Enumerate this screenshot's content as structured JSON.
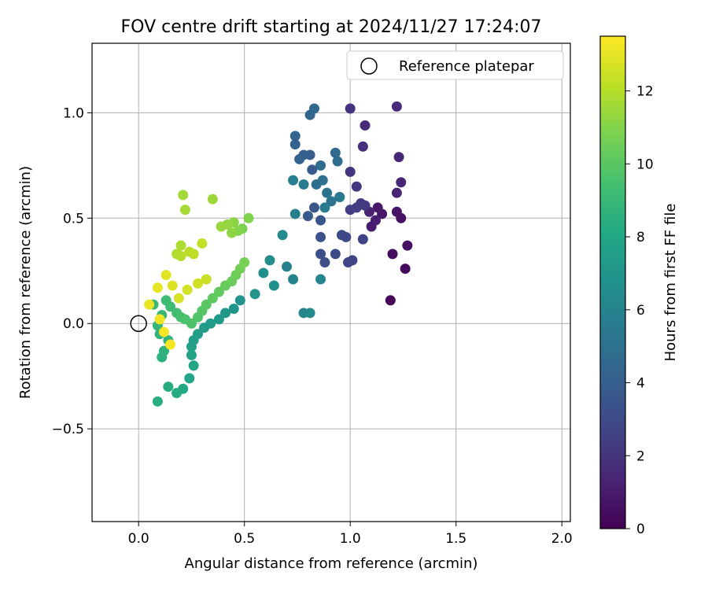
{
  "chart_data": {
    "type": "scatter",
    "title": "FOV centre drift starting at 2024/11/27 17:24:07",
    "xlabel": "Angular distance from reference (arcmin)",
    "ylabel": "Rotation from reference (arcmin)",
    "xlim": [
      -0.22,
      2.04
    ],
    "ylim": [
      -0.94,
      1.33
    ],
    "xticks": [
      0.0,
      0.5,
      1.0,
      1.5,
      2.0
    ],
    "xtick_labels": [
      "0.0",
      "0.5",
      "1.0",
      "1.5",
      "2.0"
    ],
    "yticks": [
      -0.5,
      0.0,
      0.5,
      1.0
    ],
    "ytick_labels": [
      "−0.5",
      "0.0",
      "0.5",
      "1.0"
    ],
    "grid": true,
    "legend": {
      "position": "top-right",
      "entries": [
        "Reference platepar"
      ]
    },
    "reference_point": {
      "x": 0.0,
      "y": 0.0,
      "label": "Reference platepar",
      "marker": "open circle"
    },
    "colorbar": {
      "label": "Hours from first FF file",
      "colormap": "viridis",
      "range": [
        0,
        13.5
      ],
      "ticks": [
        0,
        2,
        4,
        6,
        8,
        10,
        12
      ]
    },
    "series": [
      {
        "note_hidden": "",
        "points": [
          [
            1.19,
            0.11,
            0.2
          ],
          [
            1.26,
            0.26,
            0.3
          ],
          [
            1.2,
            0.33,
            0.4
          ],
          [
            1.27,
            0.37,
            0.5
          ],
          [
            1.24,
            0.5,
            0.6
          ],
          [
            1.22,
            0.53,
            0.7
          ],
          [
            1.15,
            0.52,
            0.8
          ],
          [
            1.13,
            0.55,
            0.9
          ],
          [
            1.1,
            0.46,
            1.0
          ],
          [
            1.12,
            0.49,
            1.1
          ],
          [
            1.09,
            0.53,
            1.2
          ],
          [
            1.22,
            0.62,
            1.3
          ],
          [
            1.24,
            0.67,
            1.4
          ],
          [
            1.23,
            0.79,
            1.5
          ],
          [
            1.22,
            1.03,
            1.6
          ],
          [
            1.07,
            0.94,
            1.7
          ],
          [
            1.06,
            0.84,
            1.8
          ],
          [
            1.0,
            1.02,
            1.9
          ],
          [
            1.0,
            0.72,
            2.0
          ],
          [
            1.03,
            0.65,
            2.1
          ],
          [
            1.05,
            0.57,
            2.2
          ],
          [
            1.07,
            0.56,
            2.3
          ],
          [
            1.03,
            0.55,
            2.4
          ],
          [
            1.0,
            0.54,
            2.5
          ],
          [
            1.06,
            0.4,
            2.6
          ],
          [
            1.01,
            0.3,
            2.7
          ],
          [
            0.99,
            0.29,
            2.8
          ],
          [
            0.98,
            0.41,
            2.9
          ],
          [
            0.96,
            0.42,
            3.0
          ],
          [
            0.93,
            0.33,
            3.1
          ],
          [
            0.88,
            0.29,
            3.2
          ],
          [
            0.86,
            0.33,
            3.3
          ],
          [
            0.86,
            0.41,
            3.4
          ],
          [
            0.86,
            0.49,
            3.5
          ],
          [
            0.83,
            0.55,
            3.6
          ],
          [
            0.8,
            0.51,
            3.7
          ],
          [
            0.82,
            0.73,
            3.8
          ],
          [
            0.81,
            0.8,
            3.9
          ],
          [
            0.78,
            0.8,
            4.0
          ],
          [
            0.76,
            0.78,
            4.1
          ],
          [
            0.74,
            0.85,
            4.2
          ],
          [
            0.74,
            0.89,
            4.3
          ],
          [
            0.81,
            0.99,
            4.4
          ],
          [
            0.83,
            1.02,
            4.5
          ],
          [
            0.93,
            0.81,
            4.6
          ],
          [
            0.94,
            0.77,
            4.7
          ],
          [
            0.86,
            0.75,
            4.8
          ],
          [
            0.84,
            0.66,
            4.9
          ],
          [
            0.87,
            0.68,
            5.0
          ],
          [
            0.89,
            0.62,
            5.1
          ],
          [
            0.91,
            0.58,
            5.2
          ],
          [
            0.95,
            0.6,
            5.3
          ],
          [
            0.95,
            0.6,
            5.4
          ],
          [
            0.88,
            0.55,
            5.5
          ],
          [
            0.78,
            0.66,
            5.6
          ],
          [
            0.73,
            0.68,
            5.7
          ],
          [
            0.74,
            0.52,
            5.8
          ],
          [
            0.7,
            0.27,
            5.9
          ],
          [
            0.73,
            0.21,
            6.0
          ],
          [
            0.86,
            0.21,
            6.1
          ],
          [
            0.78,
            0.05,
            6.2
          ],
          [
            0.81,
            0.05,
            6.3
          ],
          [
            0.68,
            0.42,
            6.4
          ],
          [
            0.62,
            0.3,
            6.5
          ],
          [
            0.64,
            0.18,
            6.6
          ],
          [
            0.59,
            0.24,
            6.7
          ],
          [
            0.55,
            0.14,
            6.8
          ],
          [
            0.48,
            0.11,
            6.9
          ],
          [
            0.45,
            0.07,
            7.0
          ],
          [
            0.41,
            0.05,
            7.1
          ],
          [
            0.38,
            0.02,
            7.2
          ],
          [
            0.34,
            0.0,
            7.3
          ],
          [
            0.31,
            -0.02,
            7.4
          ],
          [
            0.28,
            -0.05,
            7.5
          ],
          [
            0.26,
            -0.08,
            7.6
          ],
          [
            0.25,
            -0.11,
            7.7
          ],
          [
            0.25,
            -0.15,
            7.8
          ],
          [
            0.26,
            -0.2,
            7.9
          ],
          [
            0.24,
            -0.26,
            8.0
          ],
          [
            0.21,
            -0.31,
            8.1
          ],
          [
            0.18,
            -0.33,
            8.2
          ],
          [
            0.14,
            -0.3,
            8.3
          ],
          [
            0.09,
            -0.37,
            8.4
          ],
          [
            0.11,
            -0.16,
            8.5
          ],
          [
            0.12,
            -0.13,
            8.6
          ],
          [
            0.14,
            -0.08,
            8.7
          ],
          [
            0.1,
            -0.05,
            8.8
          ],
          [
            0.09,
            -0.01,
            8.9
          ],
          [
            0.11,
            0.04,
            9.0
          ],
          [
            0.07,
            0.09,
            9.1
          ],
          [
            0.13,
            0.11,
            9.2
          ],
          [
            0.15,
            0.08,
            9.3
          ],
          [
            0.18,
            0.05,
            9.4
          ],
          [
            0.2,
            0.03,
            9.5
          ],
          [
            0.22,
            0.02,
            9.6
          ],
          [
            0.25,
            0.0,
            9.7
          ],
          [
            0.28,
            0.03,
            9.8
          ],
          [
            0.3,
            0.06,
            9.9
          ],
          [
            0.32,
            0.09,
            10.0
          ],
          [
            0.35,
            0.12,
            10.1
          ],
          [
            0.38,
            0.15,
            10.2
          ],
          [
            0.41,
            0.18,
            10.3
          ],
          [
            0.44,
            0.2,
            10.4
          ],
          [
            0.46,
            0.23,
            10.5
          ],
          [
            0.48,
            0.26,
            10.6
          ],
          [
            0.5,
            0.29,
            10.7
          ],
          [
            0.49,
            0.45,
            10.8
          ],
          [
            0.52,
            0.5,
            10.9
          ],
          [
            0.47,
            0.44,
            11.0
          ],
          [
            0.45,
            0.48,
            11.1
          ],
          [
            0.44,
            0.43,
            11.2
          ],
          [
            0.42,
            0.47,
            11.3
          ],
          [
            0.39,
            0.46,
            11.4
          ],
          [
            0.35,
            0.59,
            11.5
          ],
          [
            0.21,
            0.61,
            11.6
          ],
          [
            0.22,
            0.54,
            11.7
          ],
          [
            0.2,
            0.37,
            11.8
          ],
          [
            0.18,
            0.33,
            11.9
          ],
          [
            0.2,
            0.32,
            12.0
          ],
          [
            0.24,
            0.34,
            12.1
          ],
          [
            0.26,
            0.33,
            12.2
          ],
          [
            0.3,
            0.38,
            12.3
          ],
          [
            0.32,
            0.21,
            12.4
          ],
          [
            0.28,
            0.19,
            12.5
          ],
          [
            0.23,
            0.16,
            12.6
          ],
          [
            0.19,
            0.12,
            12.7
          ],
          [
            0.16,
            0.18,
            12.8
          ],
          [
            0.13,
            0.23,
            12.9
          ],
          [
            0.09,
            0.17,
            13.0
          ],
          [
            0.05,
            0.09,
            13.1
          ],
          [
            0.1,
            0.02,
            13.2
          ],
          [
            0.12,
            -0.04,
            13.3
          ],
          [
            0.15,
            -0.1,
            13.4
          ]
        ]
      }
    ]
  }
}
